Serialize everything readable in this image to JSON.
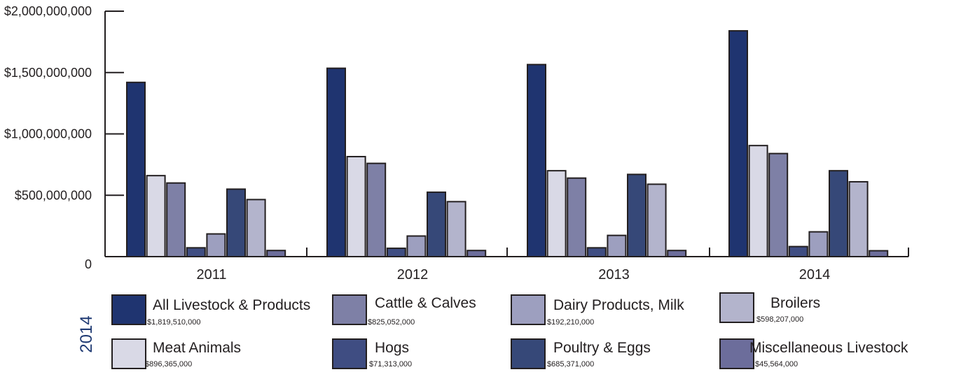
{
  "chart_data": {
    "type": "bar",
    "categories": [
      "2011",
      "2012",
      "2013",
      "2014"
    ],
    "y_ticks": [
      "$2,000,000,000",
      "$1,500,000,000",
      "$1,000,000,000",
      "$500,000,000",
      "0"
    ],
    "ylim": [
      0,
      2000000000
    ],
    "grid": false,
    "legend_placement": "bottom",
    "legend_year": "2014",
    "series": [
      {
        "name": "All Livestock & Products",
        "value_label": "$1,819,510,000",
        "color": "#1f3470",
        "values": [
          1420000000,
          1535000000,
          1565000000,
          1840000000
        ]
      },
      {
        "name": "Meat Animals",
        "value_label": "$896,365,000",
        "color": "#d9d9e6",
        "values": [
          660000000,
          815000000,
          700000000,
          905000000
        ]
      },
      {
        "name": "Cattle & Calves",
        "value_label": "$825,052,000",
        "color": "#7e80a6",
        "values": [
          600000000,
          760000000,
          640000000,
          840000000
        ]
      },
      {
        "name": "Hogs",
        "value_label": "$71,313,000",
        "color": "#3f4d82",
        "values": [
          72000000,
          68000000,
          72000000,
          82000000
        ]
      },
      {
        "name": "Dairy Products, Milk",
        "value_label": "$192,210,000",
        "color": "#9d9fbf",
        "values": [
          185000000,
          168000000,
          173000000,
          202000000
        ]
      },
      {
        "name": "Poultry & Eggs",
        "value_label": "$685,371,000",
        "color": "#364878",
        "values": [
          550000000,
          525000000,
          670000000,
          700000000
        ]
      },
      {
        "name": "Broilers",
        "value_label": "$598,207,000",
        "color": "#b3b4cc",
        "values": [
          465000000,
          448000000,
          590000000,
          610000000
        ]
      },
      {
        "name": "Miscellaneous Livestock",
        "value_label": "$45,564,000",
        "color": "#6c6d9b",
        "values": [
          50000000,
          50000000,
          50000000,
          48000000
        ]
      }
    ]
  }
}
